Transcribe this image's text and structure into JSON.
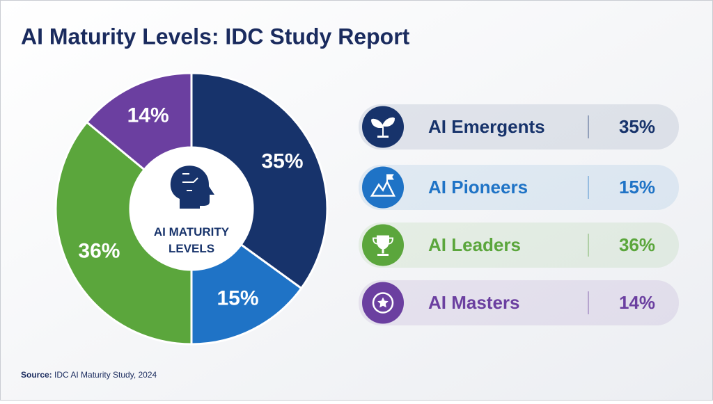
{
  "chart_data": {
    "type": "donut",
    "title": "AI Maturity Levels: IDC Study Report",
    "center_label": "AI MATURITY LEVELS",
    "categories": [
      "AI Emergents",
      "AI Pioneers",
      "AI Leaders",
      "AI Masters"
    ],
    "values": [
      35,
      15,
      36,
      14
    ],
    "value_labels": [
      "35%",
      "15%",
      "36%",
      "14%"
    ],
    "colors": [
      "#17336b",
      "#1f73c6",
      "#5ba63c",
      "#6b3fa0"
    ],
    "source_label": "Source:",
    "source": "IDC AI Maturity Study, 2024"
  }
}
